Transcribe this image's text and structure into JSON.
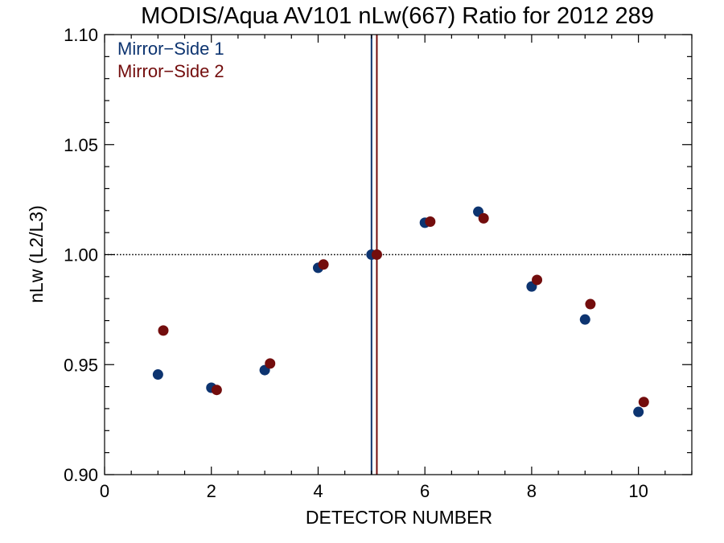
{
  "chart_data": {
    "type": "scatter",
    "title": "MODIS/Aqua AV101 nLw(667) Ratio for 2012 289",
    "xlabel": "DETECTOR NUMBER",
    "ylabel": "nLw (L2/L3)",
    "xlim": [
      0,
      11
    ],
    "ylim": [
      0.9,
      1.1
    ],
    "x_ticks": [
      0,
      2,
      4,
      6,
      8,
      10
    ],
    "x_tick_labels": [
      "0",
      "2",
      "4",
      "6",
      "8",
      "10"
    ],
    "y_ticks": [
      0.9,
      0.95,
      1.0,
      1.05,
      1.1
    ],
    "y_tick_labels": [
      "0.90",
      "0.95",
      "1.00",
      "1.05",
      "1.10"
    ],
    "reference_line_y": 1.0,
    "legend_position": "top-left",
    "series": [
      {
        "name": "Mirror−Side 1",
        "color": "#0d3470",
        "x": [
          1,
          2,
          3,
          4,
          5,
          6,
          7,
          8,
          9,
          10
        ],
        "values": [
          0.9455,
          0.9395,
          0.9475,
          0.994,
          1.0,
          1.0145,
          1.0195,
          0.9855,
          0.9705,
          0.9285
        ],
        "marker_line_x": 5.0
      },
      {
        "name": "Mirror−Side 2",
        "color": "#730d0d",
        "x": [
          1.1,
          2.1,
          3.1,
          4.1,
          5.1,
          6.1,
          7.1,
          8.1,
          9.1,
          10.1
        ],
        "values": [
          0.9655,
          0.9385,
          0.9505,
          0.9955,
          1.0,
          1.015,
          1.0165,
          0.9885,
          0.9775,
          0.933
        ],
        "marker_line_x": 5.1
      }
    ]
  }
}
